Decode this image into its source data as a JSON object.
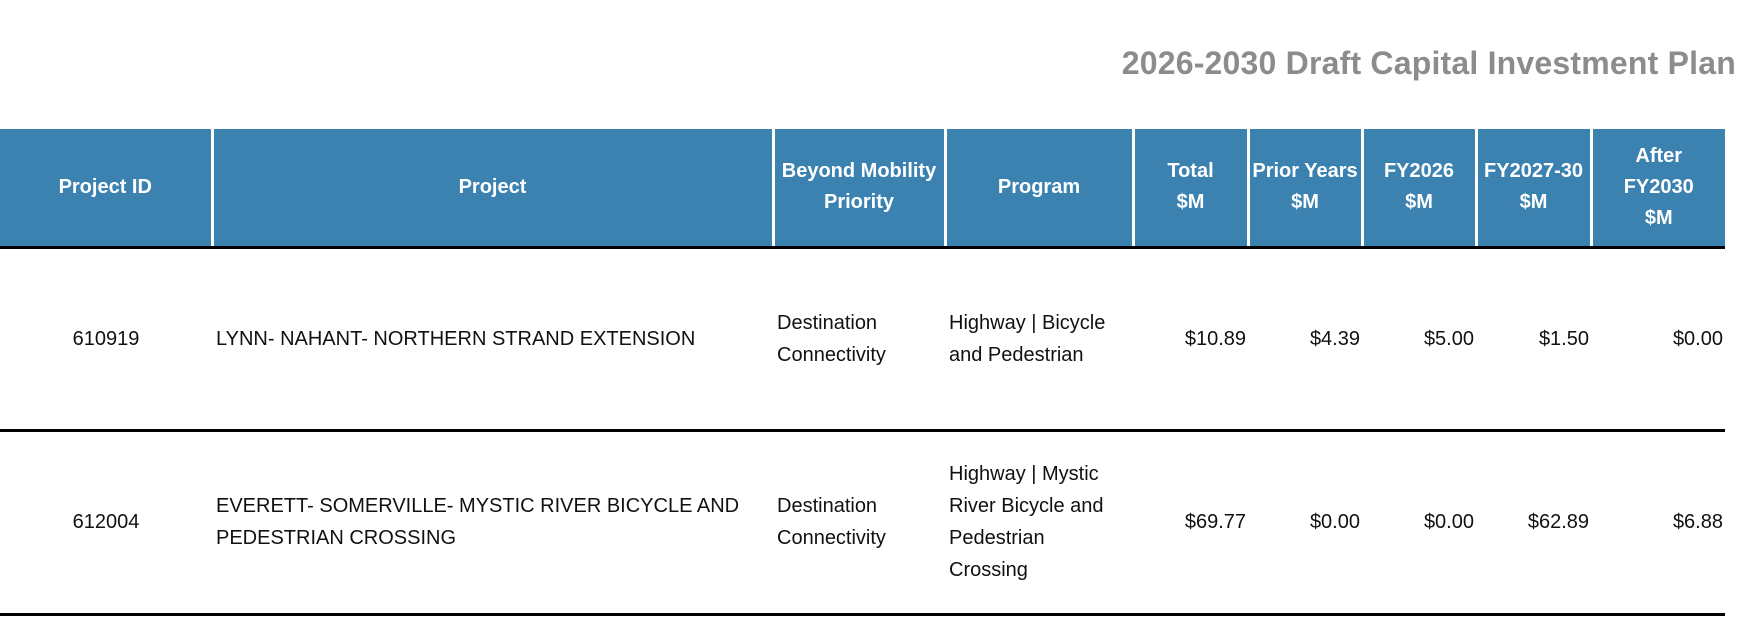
{
  "title": "2026-2030 Draft Capital Investment Plan",
  "columns": {
    "project_id": "Project ID",
    "project": "Project",
    "priority": "Beyond Mobility Priority",
    "program": "Program",
    "total": "Total $M",
    "prior": "Prior Years $M",
    "fy2026": "FY2026 $M",
    "fy2027_30": "FY2027-30 $M",
    "after": "After FY2030 $M"
  },
  "rows": [
    {
      "project_id": "610919",
      "project": "LYNN- NAHANT- NORTHERN STRAND EXTENSION",
      "priority": "Destination Connectivity",
      "program": "Highway | Bicycle and Pedestrian",
      "total": "$10.89",
      "prior": "$4.39",
      "fy2026": "$5.00",
      "fy2027_30": "$1.50",
      "after": "$0.00"
    },
    {
      "project_id": "612004",
      "project": "EVERETT- SOMERVILLE- MYSTIC RIVER BICYCLE AND PEDESTRIAN CROSSING",
      "priority": "Destination Connectivity",
      "program": "Highway | Mystic River Bicycle and Pedestrian Crossing",
      "total": "$69.77",
      "prior": "$0.00",
      "fy2026": "$0.00",
      "fy2027_30": "$62.89",
      "after": "$6.88"
    }
  ]
}
